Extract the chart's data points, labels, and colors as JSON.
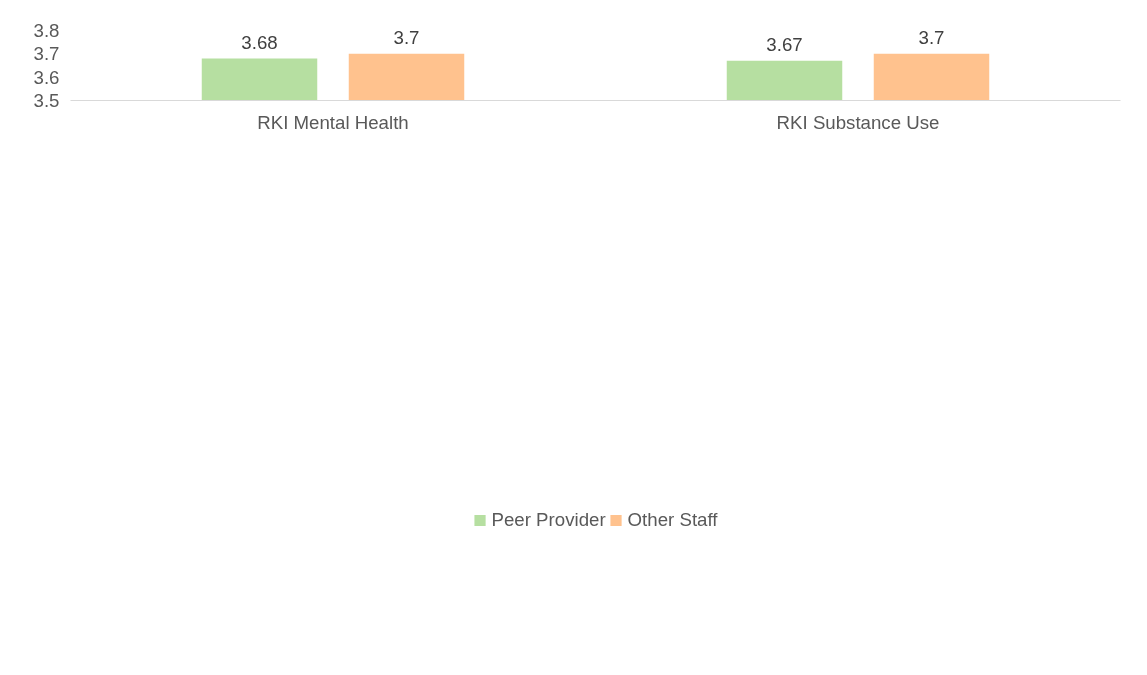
{
  "chart_data": {
    "type": "bar",
    "categories": [
      "RKI Mental Health",
      "RKI Substance Use"
    ],
    "series": [
      {
        "name": "Peer Provider",
        "color": "#b6dfa1",
        "values": [
          3.68,
          3.67
        ]
      },
      {
        "name": "Other Staff",
        "color": "#ffc28e",
        "values": [
          3.7,
          3.7
        ]
      }
    ],
    "ylim": [
      3.5,
      3.8
    ],
    "yticks": [
      3.5,
      3.6,
      3.7,
      3.8
    ],
    "grid": false,
    "legend": "bottom",
    "data_labels": true
  }
}
